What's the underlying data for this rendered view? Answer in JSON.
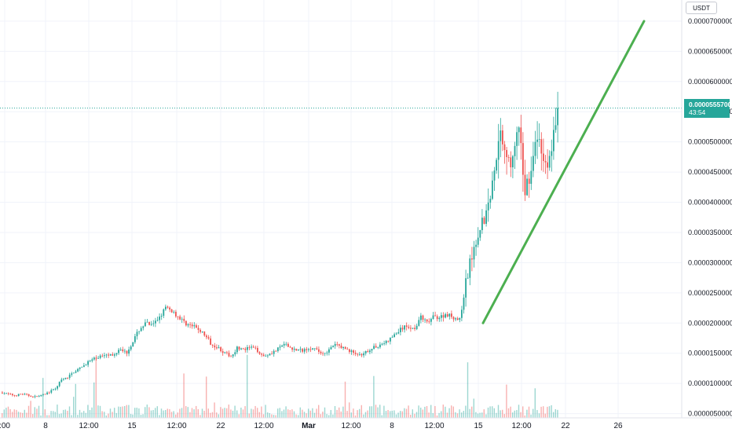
{
  "currency": "USDT",
  "last_price": {
    "value": "0.0000555700",
    "countdown": "43:54"
  },
  "colors": {
    "up": "#26a69a",
    "down": "#ef5350",
    "trendline": "#4caf50",
    "grid": "#f0f3fa"
  },
  "chart_data": {
    "type": "candlestick",
    "y_scale": "linear",
    "ylim": [
      4.3e-06,
      7.35e-05
    ],
    "y_ticks": [
      {
        "label": "0.0000700000",
        "value": 7e-05
      },
      {
        "label": "0.0000650000",
        "value": 6.5e-05
      },
      {
        "label": "0.0000600000",
        "value": 6e-05
      },
      {
        "label": "0.0000550000",
        "value": 5.5e-05
      },
      {
        "label": "0.0000500000",
        "value": 5e-05
      },
      {
        "label": "0.0000450000",
        "value": 4.5e-05
      },
      {
        "label": "0.0000400000",
        "value": 4e-05
      },
      {
        "label": "0.0000350000",
        "value": 3.5e-05
      },
      {
        "label": "0.0000300000",
        "value": 3e-05
      },
      {
        "label": "0.0000250000",
        "value": 2.5e-05
      },
      {
        "label": "0.0000200000",
        "value": 2e-05
      },
      {
        "label": "0.0000150000",
        "value": 1.5e-05
      },
      {
        "label": "0.0000100000",
        "value": 1e-05
      },
      {
        "label": "0.0000050000",
        "value": 5e-06
      }
    ],
    "x_ticks": [
      {
        "label": ":00",
        "bold": false
      },
      {
        "label": "8",
        "bold": false
      },
      {
        "label": "12:00",
        "bold": false
      },
      {
        "label": "15",
        "bold": false
      },
      {
        "label": "12:00",
        "bold": false
      },
      {
        "label": "22",
        "bold": false
      },
      {
        "label": "12:00",
        "bold": false
      },
      {
        "label": "Mar",
        "bold": true
      },
      {
        "label": "12:00",
        "bold": false
      },
      {
        "label": "8",
        "bold": false
      },
      {
        "label": "12:00",
        "bold": false
      },
      {
        "label": "15",
        "bold": false
      },
      {
        "label": "12:00",
        "bold": false
      },
      {
        "label": "22",
        "bold": false
      },
      {
        "label": "26",
        "bold": false
      }
    ],
    "price_path": [
      8.5e-06,
      8.2e-06,
      8e-06,
      8.3e-06,
      8e-06,
      7.8e-06,
      8e-06,
      8.5e-06,
      9e-06,
      1.05e-05,
      1.1e-05,
      1.2e-05,
      1.25e-05,
      1.35e-05,
      1.4e-05,
      1.45e-05,
      1.5e-05,
      1.45e-05,
      1.6e-05,
      1.5e-05,
      1.7e-05,
      1.9e-05,
      2e-05,
      1.95e-05,
      2.1e-05,
      2.25e-05,
      2.2e-05,
      2.1e-05,
      2e-05,
      1.95e-05,
      1.9e-05,
      1.8e-05,
      1.65e-05,
      1.6e-05,
      1.5e-05,
      1.45e-05,
      1.6e-05,
      1.55e-05,
      1.6e-05,
      1.55e-05,
      1.45e-05,
      1.5e-05,
      1.55e-05,
      1.65e-05,
      1.6e-05,
      1.55e-05,
      1.55e-05,
      1.6e-05,
      1.55e-05,
      1.5e-05,
      1.55e-05,
      1.65e-05,
      1.6e-05,
      1.55e-05,
      1.5e-05,
      1.45e-05,
      1.55e-05,
      1.6e-05,
      1.65e-05,
      1.7e-05,
      1.8e-05,
      1.9e-05,
      1.95e-05,
      1.9e-05,
      2.1e-05,
      2e-05,
      2.1e-05,
      2.1e-05,
      2.15e-05,
      2.1e-05,
      2.05e-05,
      2.7e-05,
      3.2e-05,
      3.6e-05,
      3.8e-05,
      4.3e-05,
      5.2e-05,
      4.9e-05,
      4.6e-05,
      5.2e-05,
      4.2e-05,
      4.6e-05,
      5.1e-05,
      4.6e-05,
      4.8e-05,
      5.56e-05
    ],
    "trendline": {
      "from": {
        "date": "Mar 15",
        "value": 2e-05
      },
      "to": {
        "date": "Mar 25",
        "value": 7e-05
      }
    }
  }
}
